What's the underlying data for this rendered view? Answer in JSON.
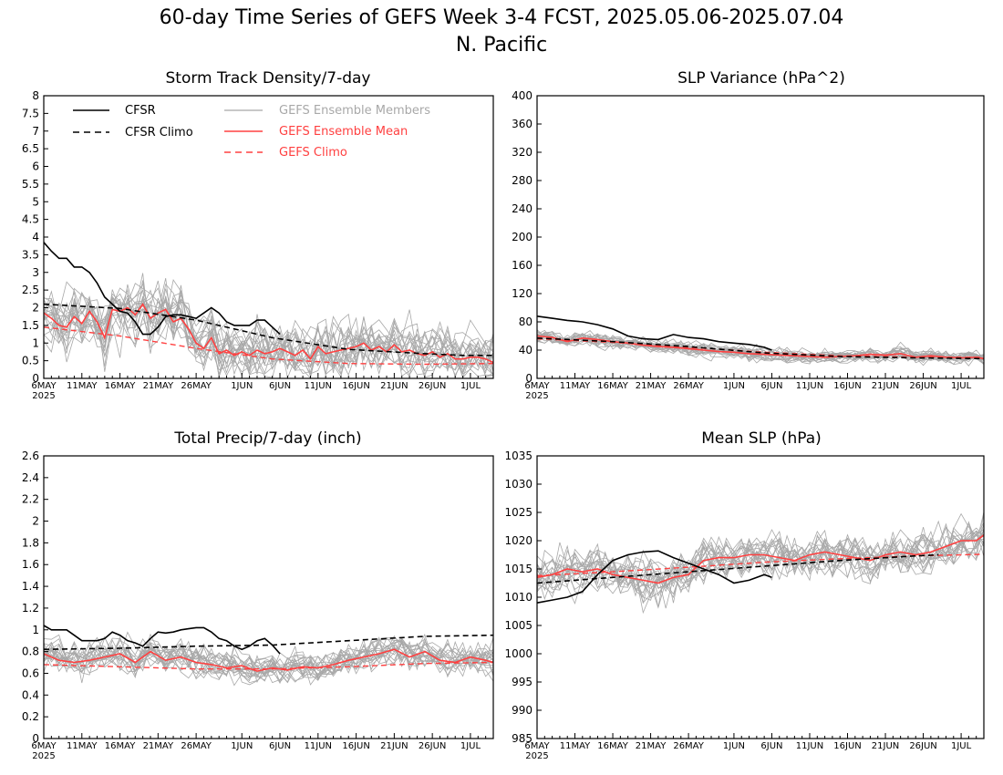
{
  "figure": {
    "title_line1": "60-day Time Series of GEFS Week 3-4 FCST, 2025.05.06-2025.07.04",
    "title_line2": "N. Pacific"
  },
  "colors": {
    "cfsr": "#000000",
    "gefs_mean": "#ff4040",
    "members": "#a8a8a8"
  },
  "legend": {
    "cfsr": "CFSR",
    "cfsr_climo": "CFSR Climo",
    "members": "GEFS Ensemble Members",
    "gefs_mean": "GEFS Ensemble Mean",
    "gefs_climo": "GEFS Climo"
  },
  "x_axis": {
    "ticks": [
      {
        "day": 0,
        "label": "6MAY"
      },
      {
        "day": 5,
        "label": "11MAY"
      },
      {
        "day": 10,
        "label": "16MAY"
      },
      {
        "day": 15,
        "label": "21MAY"
      },
      {
        "day": 20,
        "label": "26MAY"
      },
      {
        "day": 26,
        "label": "1JUN"
      },
      {
        "day": 31,
        "label": "6JUN"
      },
      {
        "day": 36,
        "label": "11JUN"
      },
      {
        "day": 41,
        "label": "16JUN"
      },
      {
        "day": 46,
        "label": "21JUN"
      },
      {
        "day": 51,
        "label": "26JUN"
      },
      {
        "day": 56,
        "label": "1JUL"
      }
    ],
    "year_label": "2025",
    "xlim": [
      0,
      59
    ]
  },
  "chart_data": [
    {
      "type": "line",
      "title": "Storm Track Density/7-day",
      "ylim": [
        0,
        8
      ],
      "yticks": [
        "0",
        "0.5",
        "1",
        "1.5",
        "2",
        "2.5",
        "3",
        "3.5",
        "4",
        "4.5",
        "5",
        "5.5",
        "6",
        "6.5",
        "7",
        "7.5",
        "8"
      ],
      "ytick_values": [
        0,
        0.5,
        1,
        1.5,
        2,
        2.5,
        3,
        3.5,
        4,
        4.5,
        5,
        5.5,
        6,
        6.5,
        7,
        7.5,
        8
      ],
      "series": [
        {
          "name": "CFSR",
          "x": [
            0,
            1,
            2,
            3,
            4,
            5,
            6,
            7,
            8,
            9,
            10,
            11,
            12,
            13,
            14,
            15,
            16,
            17,
            18,
            19,
            20,
            21,
            22,
            23,
            24,
            25,
            26,
            27,
            28,
            29,
            30,
            31
          ],
          "values": [
            3.85,
            3.6,
            3.4,
            3.4,
            3.15,
            3.15,
            3.0,
            2.7,
            2.3,
            2.1,
            1.9,
            1.85,
            1.6,
            1.25,
            1.25,
            1.45,
            1.75,
            1.8,
            1.8,
            1.75,
            1.7,
            1.85,
            2.0,
            1.85,
            1.6,
            1.5,
            1.5,
            1.5,
            1.65,
            1.65,
            1.45,
            1.25
          ]
        },
        {
          "name": "CFSR Climo",
          "x": [
            0,
            10,
            20,
            30,
            40,
            50,
            55,
            59
          ],
          "values": [
            2.1,
            1.98,
            1.65,
            1.15,
            0.82,
            0.7,
            0.65,
            0.65
          ]
        },
        {
          "name": "GEFS Ensemble Mean",
          "x": [
            0,
            1,
            2,
            3,
            4,
            5,
            6,
            7,
            8,
            9,
            10,
            11,
            12,
            13,
            14,
            15,
            16,
            17,
            18,
            19,
            20,
            21,
            22,
            23,
            24,
            25,
            26,
            27,
            28,
            29,
            30,
            31,
            32,
            33,
            34,
            35,
            36,
            37,
            38,
            39,
            40,
            41,
            42,
            43,
            44,
            45,
            46,
            47,
            48,
            49,
            50,
            51,
            52,
            53,
            54,
            55,
            56,
            57,
            58,
            59
          ],
          "values": [
            1.85,
            1.7,
            1.5,
            1.45,
            1.75,
            1.55,
            1.9,
            1.6,
            1.15,
            1.95,
            1.9,
            2.0,
            1.8,
            2.1,
            1.7,
            1.85,
            1.95,
            1.6,
            1.7,
            1.4,
            1.0,
            0.85,
            1.15,
            0.7,
            0.8,
            0.65,
            0.75,
            0.65,
            0.8,
            0.7,
            0.75,
            0.85,
            0.75,
            0.65,
            0.8,
            0.55,
            0.9,
            0.7,
            0.75,
            0.8,
            0.85,
            0.9,
            1.0,
            0.8,
            0.9,
            0.75,
            0.95,
            0.75,
            0.8,
            0.7,
            0.65,
            0.75,
            0.6,
            0.7,
            0.55,
            0.55,
            0.6,
            0.6,
            0.55,
            0.45
          ]
        },
        {
          "name": "GEFS Climo",
          "x": [
            0,
            10,
            20,
            30,
            40,
            50,
            59
          ],
          "values": [
            1.45,
            1.2,
            0.85,
            0.55,
            0.42,
            0.4,
            0.42
          ]
        }
      ]
    },
    {
      "type": "line",
      "title": "SLP Variance (hPa^2)",
      "ylim": [
        0,
        400
      ],
      "yticks": [
        "0",
        "40",
        "80",
        "120",
        "160",
        "200",
        "240",
        "280",
        "320",
        "360",
        "400"
      ],
      "ytick_values": [
        0,
        40,
        80,
        120,
        160,
        200,
        240,
        280,
        320,
        360,
        400
      ],
      "series": [
        {
          "name": "CFSR",
          "x": [
            0,
            2,
            4,
            6,
            8,
            10,
            12,
            14,
            16,
            18,
            20,
            22,
            24,
            26,
            28,
            30,
            31
          ],
          "values": [
            88,
            85,
            82,
            80,
            76,
            70,
            60,
            56,
            55,
            62,
            58,
            56,
            52,
            50,
            48,
            44,
            40
          ]
        },
        {
          "name": "CFSR Climo",
          "x": [
            0,
            10,
            20,
            30,
            40,
            50,
            59
          ],
          "values": [
            57,
            52,
            45,
            36,
            31,
            29,
            28
          ]
        },
        {
          "name": "GEFS Ensemble Mean",
          "x": [
            0,
            2,
            4,
            6,
            8,
            10,
            12,
            14,
            16,
            18,
            20,
            22,
            24,
            26,
            28,
            30,
            32,
            34,
            36,
            38,
            40,
            42,
            44,
            46,
            48,
            50,
            52,
            54,
            56,
            58,
            59
          ],
          "values": [
            60,
            58,
            52,
            57,
            55,
            52,
            50,
            47,
            45,
            44,
            42,
            40,
            38,
            37,
            35,
            34,
            33,
            32,
            31,
            30,
            31,
            32,
            34,
            33,
            35,
            30,
            32,
            30,
            29,
            30,
            28
          ]
        },
        {
          "name": "GEFS Climo",
          "x": [
            0,
            10,
            20,
            30,
            40,
            50,
            59
          ],
          "values": [
            56,
            51,
            44,
            37,
            32,
            30,
            30
          ]
        }
      ]
    },
    {
      "type": "line",
      "title": "Total Precip/7-day (inch)",
      "ylim": [
        0,
        2.6
      ],
      "yticks": [
        "0",
        "0.2",
        "0.4",
        "0.6",
        "0.8",
        "1",
        "1.2",
        "1.4",
        "1.6",
        "1.8",
        "2",
        "2.2",
        "2.4",
        "2.6"
      ],
      "ytick_values": [
        0,
        0.2,
        0.4,
        0.6,
        0.8,
        1,
        1.2,
        1.4,
        1.6,
        1.8,
        2,
        2.2,
        2.4,
        2.6
      ],
      "series": [
        {
          "name": "CFSR",
          "x": [
            0,
            1,
            2,
            3,
            4,
            5,
            6,
            7,
            8,
            9,
            10,
            11,
            12,
            13,
            14,
            15,
            16,
            17,
            18,
            19,
            20,
            21,
            22,
            23,
            24,
            25,
            26,
            27,
            28,
            29,
            30,
            31
          ],
          "values": [
            1.04,
            1.0,
            1.0,
            1.0,
            0.95,
            0.9,
            0.9,
            0.9,
            0.92,
            0.98,
            0.95,
            0.9,
            0.88,
            0.85,
            0.92,
            0.98,
            0.97,
            0.98,
            1.0,
            1.01,
            1.02,
            1.02,
            0.98,
            0.92,
            0.9,
            0.85,
            0.82,
            0.85,
            0.9,
            0.92,
            0.86,
            0.78
          ]
        },
        {
          "name": "CFSR Climo",
          "x": [
            0,
            10,
            20,
            30,
            40,
            50,
            59
          ],
          "values": [
            0.82,
            0.83,
            0.85,
            0.86,
            0.9,
            0.94,
            0.95
          ]
        },
        {
          "name": "GEFS Ensemble Mean",
          "x": [
            0,
            2,
            4,
            6,
            8,
            10,
            12,
            14,
            16,
            18,
            20,
            22,
            24,
            26,
            28,
            30,
            32,
            34,
            36,
            38,
            40,
            42,
            44,
            46,
            48,
            50,
            52,
            54,
            56,
            58,
            59
          ],
          "values": [
            0.78,
            0.72,
            0.7,
            0.72,
            0.75,
            0.78,
            0.7,
            0.8,
            0.72,
            0.75,
            0.7,
            0.68,
            0.65,
            0.67,
            0.62,
            0.65,
            0.63,
            0.66,
            0.65,
            0.68,
            0.72,
            0.75,
            0.78,
            0.82,
            0.75,
            0.8,
            0.72,
            0.7,
            0.75,
            0.72,
            0.7
          ]
        },
        {
          "name": "GEFS Climo",
          "x": [
            0,
            10,
            20,
            30,
            40,
            50,
            59
          ],
          "values": [
            0.68,
            0.66,
            0.64,
            0.64,
            0.66,
            0.69,
            0.7
          ]
        }
      ]
    },
    {
      "type": "line",
      "title": "Mean SLP (hPa)",
      "ylim": [
        985,
        1035
      ],
      "yticks": [
        "985",
        "990",
        "995",
        "1000",
        "1005",
        "1010",
        "1015",
        "1020",
        "1025",
        "1030",
        "1035"
      ],
      "ytick_values": [
        985,
        990,
        995,
        1000,
        1005,
        1010,
        1015,
        1020,
        1025,
        1030,
        1035
      ],
      "series": [
        {
          "name": "CFSR",
          "x": [
            0,
            2,
            4,
            6,
            8,
            10,
            12,
            14,
            16,
            18,
            20,
            22,
            24,
            26,
            28,
            30,
            31
          ],
          "values": [
            1009,
            1009.5,
            1010,
            1011,
            1014,
            1016.5,
            1017.5,
            1018,
            1018.2,
            1017,
            1016,
            1015,
            1014,
            1012.5,
            1013,
            1014,
            1013.5
          ]
        },
        {
          "name": "CFSR Climo",
          "x": [
            0,
            10,
            20,
            30,
            40,
            50,
            53
          ],
          "values": [
            1012.5,
            1013.5,
            1014.5,
            1015.5,
            1016.5,
            1017.3,
            1017.5
          ]
        },
        {
          "name": "GEFS Ensemble Mean",
          "x": [
            0,
            2,
            4,
            6,
            8,
            10,
            12,
            14,
            16,
            18,
            20,
            22,
            24,
            26,
            28,
            30,
            32,
            34,
            36,
            38,
            40,
            42,
            44,
            46,
            48,
            50,
            52,
            54,
            56,
            58,
            59
          ],
          "values": [
            1013.5,
            1014,
            1015,
            1014.5,
            1015,
            1014,
            1013.5,
            1013,
            1012.5,
            1013.5,
            1014,
            1016.5,
            1017,
            1017,
            1017.5,
            1017.5,
            1017,
            1016.5,
            1017.5,
            1018,
            1017.5,
            1017,
            1016.5,
            1017.5,
            1018,
            1017.5,
            1018,
            1019,
            1020,
            1020,
            1021
          ]
        },
        {
          "name": "GEFS Climo",
          "x": [
            0,
            10,
            20,
            30,
            40,
            50,
            59
          ],
          "values": [
            1013.8,
            1014.5,
            1015.3,
            1016.2,
            1016.8,
            1017.3,
            1017.6
          ]
        }
      ]
    }
  ]
}
